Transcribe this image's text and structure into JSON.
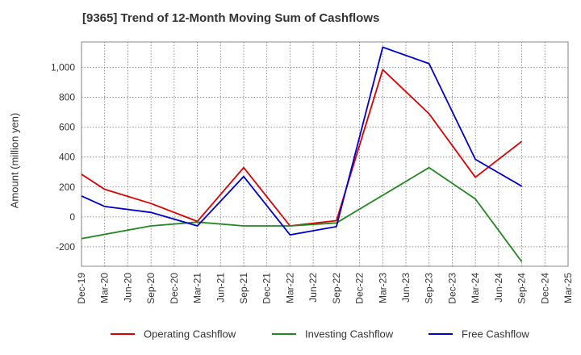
{
  "chart_data": {
    "type": "line",
    "title": "[9365]  Trend of 12-Month Moving Sum of Cashflows",
    "xlabel": "",
    "ylabel": "Amount (million yen)",
    "categories": [
      "Dec-19",
      "Mar-20",
      "Jun-20",
      "Sep-20",
      "Dec-20",
      "Mar-21",
      "Jun-21",
      "Sep-21",
      "Dec-21",
      "Mar-22",
      "Jun-22",
      "Sep-22",
      "Dec-22",
      "Mar-23",
      "Jun-23",
      "Sep-23",
      "Dec-23",
      "Mar-24",
      "Jun-24",
      "Sep-24",
      "Dec-24",
      "Mar-25"
    ],
    "y_ticks": [
      -200,
      0,
      200,
      400,
      600,
      800,
      1000
    ],
    "y_tick_labels": [
      "-200",
      "0",
      "200",
      "400",
      "600",
      "800",
      "1,000"
    ],
    "ylim": [
      -330,
      1170
    ],
    "grid": true,
    "legend_position": "bottom",
    "series": [
      {
        "name": "Operating Cashflow",
        "color": "#dd0000",
        "values": [
          285,
          185,
          null,
          90,
          null,
          -30,
          null,
          330,
          null,
          -60,
          null,
          -25,
          null,
          985,
          null,
          690,
          null,
          265,
          null,
          505,
          null,
          null
        ]
      },
      {
        "name": "Investing Cashflow",
        "color": "#228822",
        "values": [
          -145,
          null,
          null,
          -60,
          null,
          -35,
          null,
          -60,
          null,
          -60,
          null,
          -40,
          null,
          null,
          null,
          330,
          null,
          120,
          null,
          -300,
          null,
          null
        ]
      },
      {
        "name": "Free Cashflow",
        "color": "#0000cc",
        "values": [
          140,
          70,
          null,
          30,
          null,
          -60,
          null,
          270,
          null,
          -120,
          null,
          -65,
          null,
          1135,
          null,
          1025,
          null,
          385,
          null,
          205,
          null,
          null
        ]
      }
    ]
  }
}
